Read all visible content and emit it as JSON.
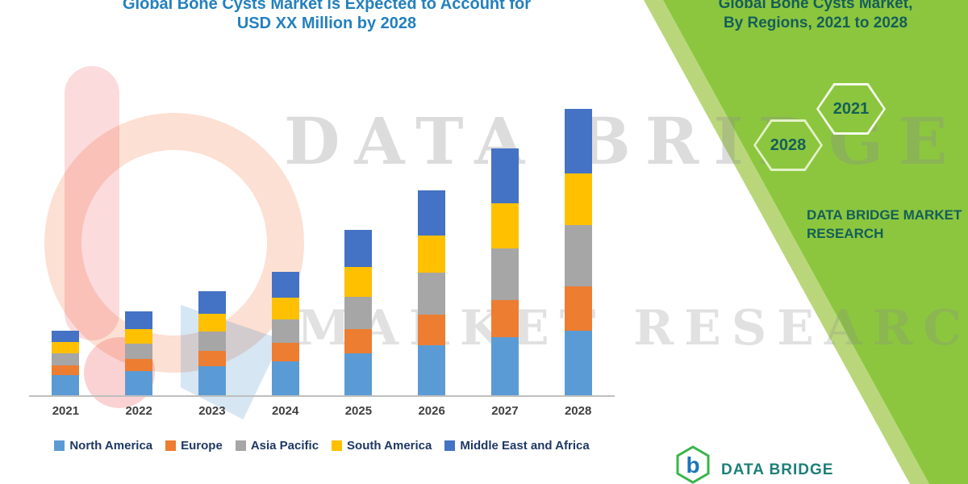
{
  "chart_data": {
    "type": "bar",
    "stacked": true,
    "title": "Global Bone Cysts Market is Expected to Account for USD XX Million by 2028",
    "title_line1": "Global Bone Cysts Market is Expected to Account for",
    "title_line2": "USD XX Million by 2028",
    "categories": [
      "2021",
      "2022",
      "2023",
      "2024",
      "2025",
      "2026",
      "2027",
      "2028"
    ],
    "series": [
      {
        "name": "North America",
        "color": "#5B9BD5",
        "values": [
          25,
          30,
          36,
          42,
          52,
          62,
          72,
          80
        ]
      },
      {
        "name": "Europe",
        "color": "#ED7D31",
        "values": [
          12,
          15,
          19,
          23,
          30,
          38,
          46,
          55
        ]
      },
      {
        "name": "Asia Pacific",
        "color": "#A6A6A6",
        "values": [
          15,
          19,
          24,
          29,
          40,
          52,
          64,
          76
        ]
      },
      {
        "name": "South America",
        "color": "#FFC000",
        "values": [
          14,
          18,
          22,
          27,
          37,
          46,
          56,
          64
        ]
      },
      {
        "name": "Middle East and Africa",
        "color": "#4472C4",
        "values": [
          14,
          22,
          28,
          32,
          46,
          56,
          68,
          80
        ]
      }
    ],
    "xlabel": "",
    "ylabel": "",
    "ylim": [
      0,
      360
    ],
    "grid": false,
    "legend_position": "bottom",
    "value_unit": "USD XX Million (values not labeled in chart)"
  },
  "side_panel": {
    "title_line1": "Global Bone Cysts Market,",
    "title_line2": "By Regions, 2021 to 2028",
    "hexagons": [
      "2028",
      "2021"
    ],
    "brand_line1": "DATA BRIDGE MARKET",
    "brand_line2": "RESEARCH",
    "panel_color": "#8CC63F",
    "stripe_color": "#B9D77A",
    "text_color": "#155F58"
  },
  "watermark": {
    "line1": "DATA BRIDGE",
    "line2": "MARKET RESEARCH"
  },
  "footer_logo": {
    "text": "DATA BRIDGE"
  },
  "colors": {
    "title": "#2380BE",
    "legend_text": "#1F3864",
    "axis_line": "#BFBFBF"
  }
}
